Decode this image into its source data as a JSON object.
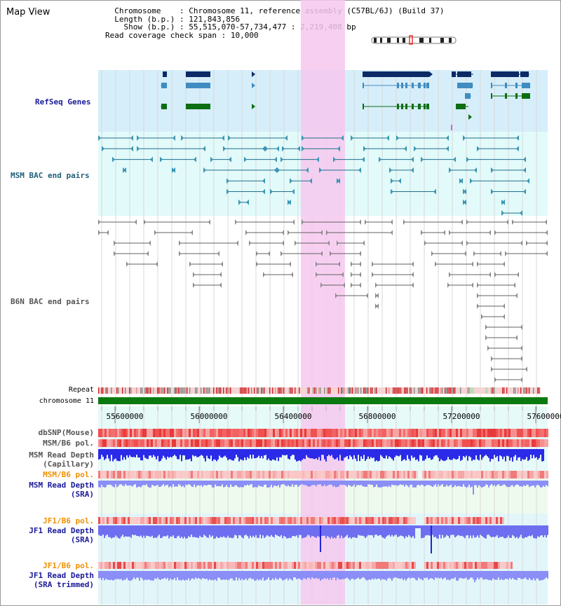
{
  "title": "Map View",
  "info": {
    "chromosome_label": "Chromosome",
    "chromosome_value": "Chromosome 11, reference assembly (C57BL/6J) (Build 37)",
    "length_label": "Length (b.p.)",
    "length_value": "121,843,856",
    "show_label": "Show (b.p.)",
    "show_value": "55,515,070-57,734,477 : 2,219,408 bp",
    "span_label": "Read coverage check span",
    "span_value": "10,000"
  },
  "tracks": {
    "refseq": "RefSeq Genes",
    "msm_bac": "MSM BAC end pairs",
    "b6n_bac": "B6N BAC end pairs",
    "repeat": "Repeat",
    "chromosome": "chromosome 11",
    "dbsnp": "dbSNP(Mouse)",
    "msm_b6_pol": "MSM/B6 pol.",
    "msm_rd_cap_1": "MSM Read Depth",
    "msm_rd_cap_2": "(Capillary)",
    "msm_b6_pol_sra": "MSM/B6 pol.",
    "msm_rd_sra_1": "MSM Read Depth",
    "msm_rd_sra_2": "(SRA)",
    "jf1_b6_pol": "JF1/B6 pol.",
    "jf1_rd_sra_1": "JF1 Read Depth",
    "jf1_rd_sra_2": "(SRA)",
    "jf1_b6_pol_2": "JF1/B6 pol.",
    "jf1_rd_trim_1": "JF1 Read Depth",
    "jf1_rd_trim_2": "(SRA trimmed)"
  },
  "axis": {
    "ticks": [
      "55600000",
      "56000000",
      "56400000",
      "56800000",
      "57200000",
      "57600000"
    ]
  },
  "colors": {
    "highlight": "#f6c8ee",
    "refseq_bg": "#d6eefa",
    "bac_bg": "#e2fafa",
    "gene_dark": "#0c2a66",
    "gene_mid": "#3f8cc1",
    "gene_green": "#0c6e12",
    "chromosome": "#0a7a10",
    "depth_blue": "#2a2ae8",
    "depth_light": "#8a8ef6"
  }
}
